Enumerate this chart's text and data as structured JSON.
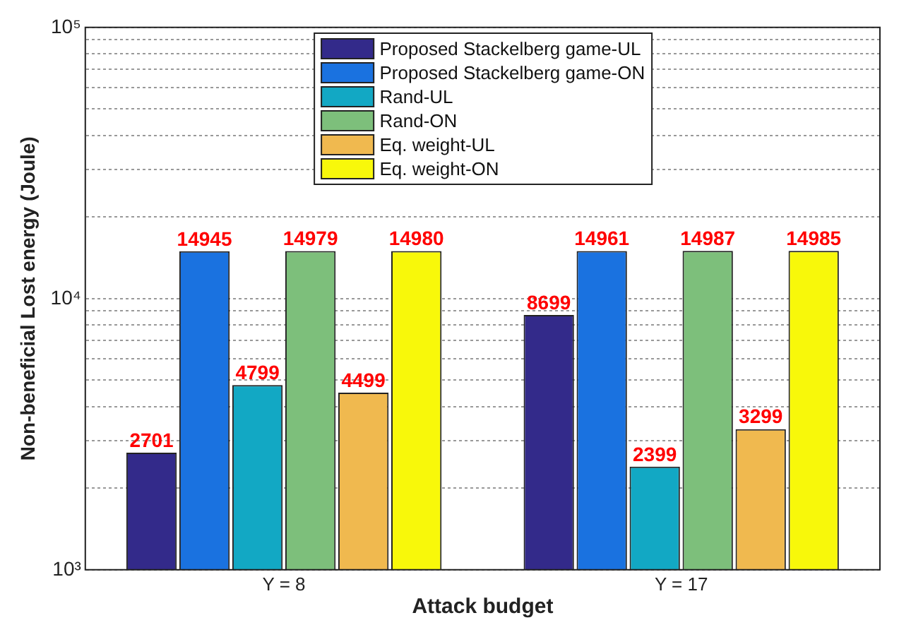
{
  "chart_data": {
    "type": "bar",
    "xlabel": "Attack budget",
    "ylabel": "Non-beneficial Lost energy (Joule)",
    "categories": [
      "Y = 8",
      "Y = 17"
    ],
    "series": [
      {
        "name": "Proposed Stackelberg game-UL",
        "color": "#332a8a",
        "values": [
          2701,
          8699
        ]
      },
      {
        "name": "Proposed Stackelberg game-ON",
        "color": "#1a72e0",
        "values": [
          14945,
          14961
        ]
      },
      {
        "name": "Rand-UL",
        "color": "#12a8c4",
        "values": [
          4799,
          2399
        ]
      },
      {
        "name": "Rand-ON",
        "color": "#7dbf7b",
        "values": [
          14979,
          14987
        ]
      },
      {
        "name": "Eq. weight-UL",
        "color": "#f0b94f",
        "values": [
          4499,
          3299
        ]
      },
      {
        "name": "Eq. weight-ON",
        "color": "#f8f80a",
        "values": [
          14980,
          14985
        ]
      }
    ],
    "log": "y",
    "ylim": [
      1000,
      100000
    ],
    "yticks": [
      {
        "value": 1000,
        "label": "10³"
      },
      {
        "value": 2000,
        "label": null
      },
      {
        "value": 3000,
        "label": null
      },
      {
        "value": 4000,
        "label": null
      },
      {
        "value": 5000,
        "label": null
      },
      {
        "value": 6000,
        "label": null
      },
      {
        "value": 7000,
        "label": null
      },
      {
        "value": 8000,
        "label": null
      },
      {
        "value": 9000,
        "label": null
      },
      {
        "value": 10000,
        "label": "10⁴"
      },
      {
        "value": 20000,
        "label": null
      },
      {
        "value": 30000,
        "label": null
      },
      {
        "value": 40000,
        "label": null
      },
      {
        "value": 50000,
        "label": null
      },
      {
        "value": 60000,
        "label": null
      },
      {
        "value": 70000,
        "label": null
      },
      {
        "value": 80000,
        "label": null
      },
      {
        "value": 90000,
        "label": null
      },
      {
        "value": 100000,
        "label": "10⁵"
      }
    ],
    "grid": "y",
    "legend": "top",
    "data_labels": true
  }
}
